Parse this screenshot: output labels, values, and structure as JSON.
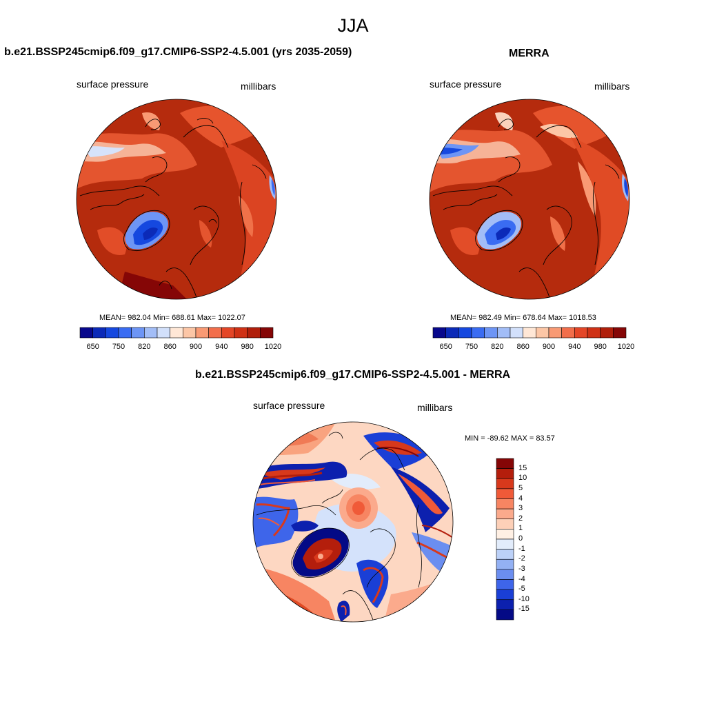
{
  "season": "JJA",
  "panels": [
    {
      "title": "b.e21.BSSP245cmip6.f09_g17.CMIP6-SSP2-4.5.001 (yrs 2035-2059)",
      "variable": "surface pressure",
      "units": "millibars",
      "stats": "MEAN= 982.04  Min= 688.61  Max= 1022.07",
      "colorbar": {
        "colors": [
          "#08088c",
          "#0b2ab8",
          "#1548df",
          "#3a6cf2",
          "#6d95f5",
          "#a2bdf7",
          "#d2e0fb",
          "#ffe7d6",
          "#fcc6a6",
          "#f99a74",
          "#f26e4b",
          "#e44627",
          "#cf3115",
          "#b01e0a",
          "#850606"
        ],
        "tick_labels": [
          "650",
          "750",
          "820",
          "860",
          "900",
          "940",
          "980",
          "1020"
        ]
      }
    },
    {
      "title": "MERRA",
      "variable": "surface pressure",
      "units": "millibars",
      "stats": "MEAN= 982.49  Min= 678.64  Max= 1018.53",
      "colorbar": {
        "colors": [
          "#08088c",
          "#0b2ab8",
          "#1548df",
          "#3a6cf2",
          "#6d95f5",
          "#a2bdf7",
          "#d2e0fb",
          "#ffe7d6",
          "#fcc6a6",
          "#f99a74",
          "#f26e4b",
          "#e44627",
          "#cf3115",
          "#b01e0a",
          "#850606"
        ],
        "tick_labels": [
          "650",
          "750",
          "820",
          "860",
          "900",
          "940",
          "980",
          "1020"
        ]
      }
    }
  ],
  "diff": {
    "title": "b.e21.BSSP245cmip6.f09_g17.CMIP6-SSP2-4.5.001 - MERRA",
    "variable": "surface pressure",
    "units": "millibars",
    "stats": "MIN = -89.62 MAX =  83.57",
    "colorbar": {
      "colors": [
        "#850606",
        "#b41e0c",
        "#d8391c",
        "#f05a38",
        "#f78562",
        "#fbaa8c",
        "#fdd0b8",
        "#fff0e4",
        "#e2ecfb",
        "#bcd1f8",
        "#93b1f4",
        "#6b8ef0",
        "#3e65ea",
        "#1a3fd6",
        "#0c20ae",
        "#040a86"
      ],
      "tick_labels": [
        "15",
        "10",
        "5",
        "4",
        "3",
        "2",
        "1",
        "0",
        "-1",
        "-2",
        "-3",
        "-4",
        "-5",
        "-10",
        "-15"
      ]
    }
  }
}
